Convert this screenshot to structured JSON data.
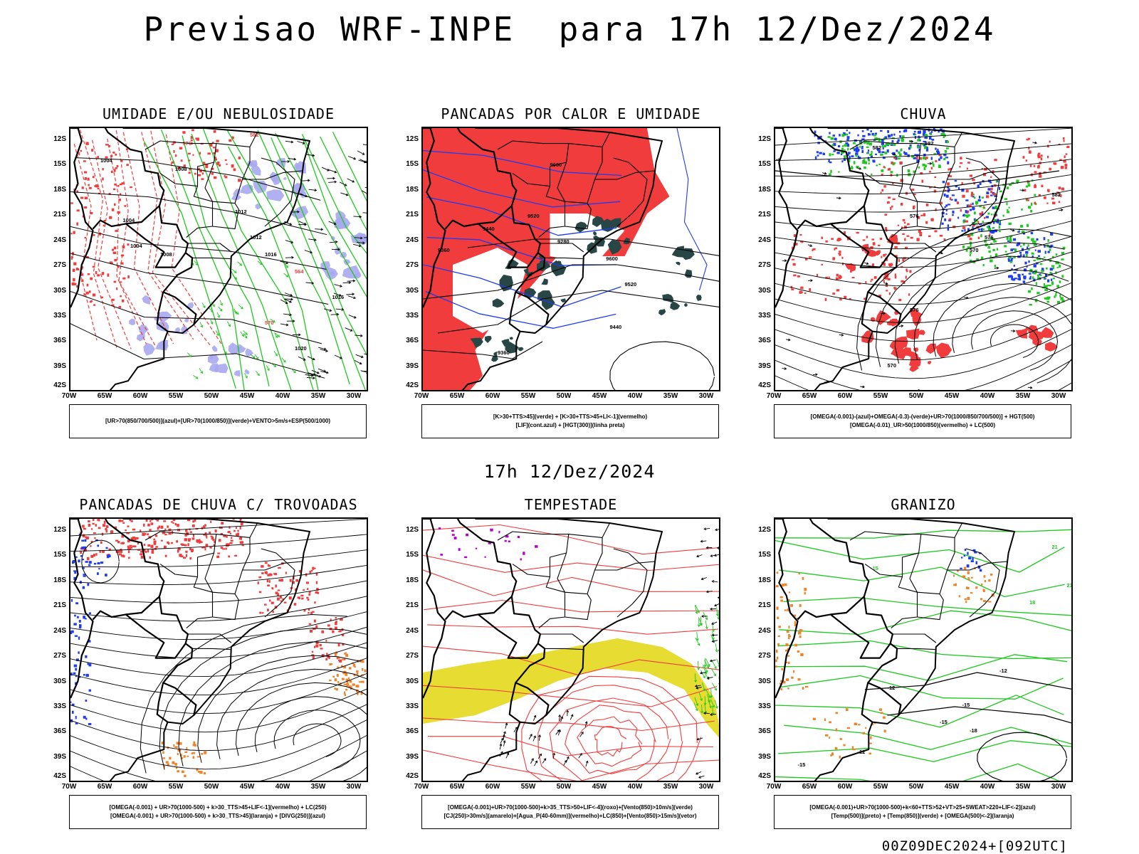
{
  "header": {
    "title": "Previsao WRF-INPE  para 17h 12/Dez/2024",
    "subtitle": "17h 12/Dez/2024",
    "run_stamp": "00Z09DEC2024+[092UTC]"
  },
  "axes": {
    "lat_labels": [
      "12S",
      "15S",
      "18S",
      "21S",
      "24S",
      "27S",
      "30S",
      "33S",
      "36S",
      "39S",
      "42S"
    ],
    "lon_labels": [
      "70W",
      "65W",
      "60W",
      "55W",
      "50W",
      "45W",
      "40W",
      "35W",
      "30W"
    ]
  },
  "colors": {
    "humidity_fill": "#a8a8f0",
    "red": "#f03c3c",
    "green": "#1ec81e",
    "blue": "#1e3cf0",
    "dark_teal": "#284646",
    "yellow": "#e6dc32",
    "orange": "#f08228",
    "magenta": "#b400c8"
  },
  "panels": [
    {
      "id": "umidade",
      "title": "UMIDADE E/OU NEBULOSIDADE",
      "legend": [
        "[UR>70(850/700/500)](azul)+[UR>70(1000/850)](verde)+VENTO>5m/s+ESP(500/1000)"
      ],
      "contour_labels": [
        "1004",
        "1008",
        "1012",
        "1016",
        "1020",
        "1004",
        "1008",
        "1012",
        "1016",
        "1004",
        "576",
        "582",
        "564",
        "570"
      ]
    },
    {
      "id": "pancadas_calor",
      "title": "PANCADAS POR CALOR E UMIDADE",
      "legend": [
        "[K>30+TTS>45](verde) + [K>30+TTS>45+LI<-1](vermelho)",
        "[LIF](cont.azul) + [HGT(300)](linha preta)"
      ],
      "contour_labels": [
        "9600",
        "9520",
        "9440",
        "9360",
        "9280",
        "9600",
        "9520",
        "9440",
        "9360"
      ]
    },
    {
      "id": "chuva",
      "title": "CHUVA",
      "legend": [
        "[OMEGA(-0.001)-(azul)+OMEGA(-0.3)-(verde)+UR>70(1000/850/700/500)] + HGT(500)",
        "[OMEGA(-0.01)_UR>50(1000/850)(vermelho) + LC(500)"
      ],
      "contour_labels": [
        "582",
        "582",
        "576",
        "576",
        "570",
        "576",
        "570",
        "582"
      ]
    },
    {
      "id": "pancadas_trovoadas",
      "title": "PANCADAS DE CHUVA C/ TROVOADAS",
      "legend": [
        "[OMEGA(-0.001) + UR>70(1000-500) + k>30_TTS>45+LIF<-1](vermelho) + LC(250)",
        "[OMEGA(-0.001) + UR>70(1000-500) + k>30_TTS>45](laranja) + [DIVG(250)](azul)"
      ],
      "contour_labels": []
    },
    {
      "id": "tempestade",
      "title": "TEMPESTADE",
      "legend": [
        "[OMEGA(-0.001)+UR>70(1000-500)+k>35_TTS>50+LIF<-4](roxo)+[Vento(850)>10m/s](verde)",
        "[CJ(250)>30m/s](amarelo)+[Agua_P(40-60mm)](vermelho)+LC(850)+[Vento(850)>15m/s](vetor)"
      ],
      "contour_labels": []
    },
    {
      "id": "granizo",
      "title": "GRANIZO",
      "legend": [
        "[OMEGA(-0.001)+UR>70(1000-500)+k<60+TTS>52+VT>25+SWEAT>220+LIF<-2](azul)",
        "[Temp(500)](preto) + [Temp(850)](verde) + [OMEGA(500)<-2](laranja)"
      ],
      "contour_labels": [
        "-12",
        "-12",
        "-15",
        "-15",
        "-18",
        "-12",
        "-15",
        "21",
        "21",
        "18",
        "15"
      ]
    }
  ]
}
